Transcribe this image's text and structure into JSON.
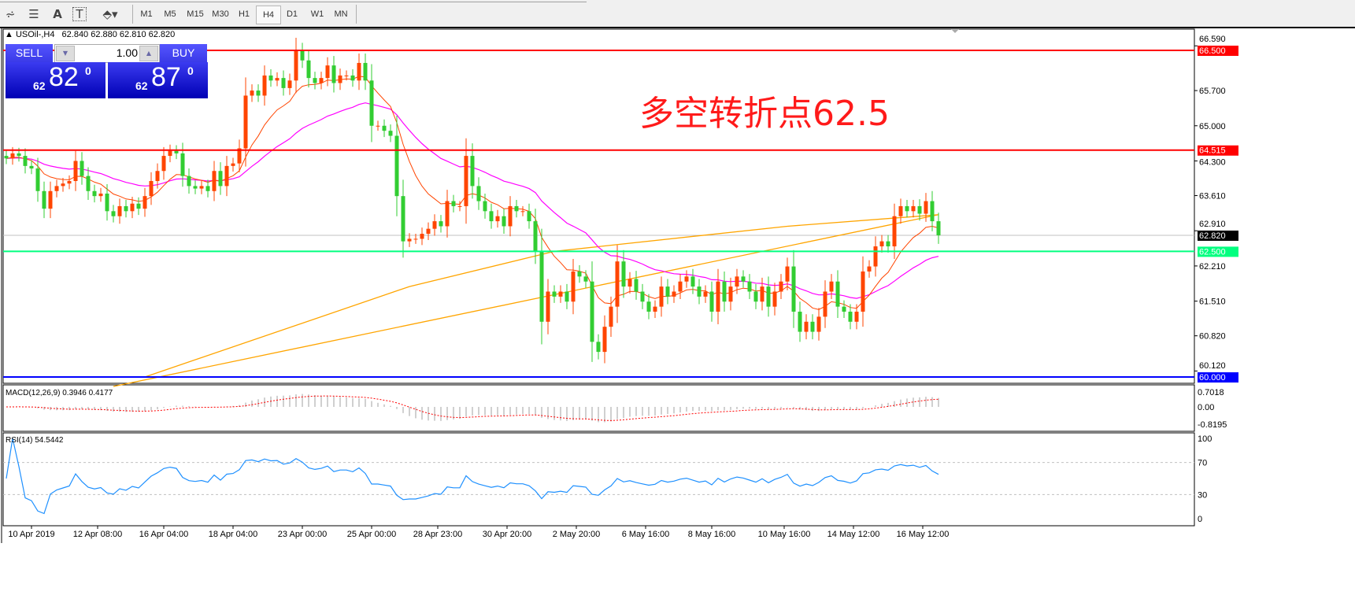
{
  "toolbar": {
    "icons": [
      "elliott-wave-icon",
      "fibonacci-icon",
      "text-icon",
      "text-label-icon",
      "arrows-icon"
    ],
    "text_icon_glyph": "A",
    "label_icon_glyph": "T",
    "timeframes": [
      "M1",
      "M5",
      "M15",
      "M30",
      "H1",
      "H4",
      "D1",
      "W1",
      "MN"
    ],
    "selected_timeframe": "H4"
  },
  "header": {
    "symbol": "USOil-,H4",
    "ohlc": "62.840 62.880 62.810 62.820"
  },
  "trade_panel": {
    "sell_label": "SELL",
    "buy_label": "BUY",
    "lot": "1.00",
    "sell_price": {
      "prefix": "62",
      "main": "82",
      "sup": "0"
    },
    "buy_price": {
      "prefix": "62",
      "main": "87",
      "sup": "0"
    }
  },
  "annotation": "多空转折点62.5",
  "macd": {
    "label": "MACD(12,26,9) 0.3946 0.4177",
    "ticks": [
      "0.7018",
      "0.00",
      "-0.8195"
    ]
  },
  "rsi": {
    "label": "RSI(14) 54.5442",
    "ticks": [
      "100",
      "70",
      "30",
      "0"
    ],
    "levels": [
      70,
      30
    ]
  },
  "colors": {
    "bull": "#ff4500",
    "bear": "#32cd32",
    "ma_fast": "#ff4500",
    "ma_mid": "#ff00ff",
    "ma_long": "#ffa500",
    "rsi": "#1e90ff",
    "macd_signal": "#ff0000"
  },
  "chart_data": {
    "type": "candlestick",
    "symbol": "USOil-",
    "timeframe": "H4",
    "ylim": [
      59.9,
      66.9
    ],
    "price_ticks": [
      "66.590",
      "65.700",
      "65.000",
      "64.300",
      "63.610",
      "62.910",
      "62.210",
      "61.510",
      "60.820",
      "60.120"
    ],
    "levels": [
      {
        "price": 66.5,
        "label": "66.500",
        "color": "#ff0000"
      },
      {
        "price": 64.515,
        "label": "64.515",
        "color": "#ff0000"
      },
      {
        "price": 62.5,
        "label": "62.500",
        "color": "#00ff7f"
      },
      {
        "price": 60.0,
        "label": "60.000",
        "color": "#0000ff"
      }
    ],
    "bid": {
      "price": 62.82,
      "label": "62.820"
    },
    "time_labels": [
      {
        "bar": 4,
        "label": "10 Apr 2019"
      },
      {
        "bar": 14.5,
        "label": "12 Apr 08:00"
      },
      {
        "bar": 25,
        "label": "16 Apr 04:00"
      },
      {
        "bar": 36,
        "label": "18 Apr 04:00"
      },
      {
        "bar": 47,
        "label": "23 Apr 00:00"
      },
      {
        "bar": 58,
        "label": "25 Apr 00:00"
      },
      {
        "bar": 68.5,
        "label": "28 Apr 23:00"
      },
      {
        "bar": 79.5,
        "label": "30 Apr 20:00"
      },
      {
        "bar": 90.5,
        "label": "2 May 20:00"
      },
      {
        "bar": 101.5,
        "label": "6 May 16:00"
      },
      {
        "bar": 112,
        "label": "8 May 16:00"
      },
      {
        "bar": 123.5,
        "label": "10 May 16:00"
      },
      {
        "bar": 134.5,
        "label": "14 May 12:00"
      },
      {
        "bar": 145.5,
        "label": "16 May 12:00"
      }
    ],
    "close": [
      64.35,
      64.45,
      64.4,
      64.2,
      64.15,
      63.7,
      63.35,
      63.7,
      63.8,
      63.85,
      63.9,
      64.3,
      64.0,
      63.7,
      63.6,
      63.65,
      63.3,
      63.2,
      63.4,
      63.3,
      63.45,
      63.35,
      63.6,
      63.9,
      64.1,
      64.4,
      64.5,
      64.45,
      64.0,
      63.8,
      63.75,
      63.8,
      63.7,
      64.1,
      63.8,
      64.2,
      64.25,
      64.55,
      65.6,
      65.7,
      65.6,
      66.0,
      65.9,
      65.95,
      65.75,
      65.9,
      66.5,
      66.3,
      65.95,
      65.85,
      65.95,
      66.2,
      65.85,
      66.0,
      66.0,
      65.9,
      66.25,
      65.9,
      65.0,
      65.0,
      64.9,
      64.8,
      63.6,
      62.7,
      62.75,
      62.75,
      62.85,
      62.95,
      63.1,
      63.0,
      63.5,
      63.4,
      63.4,
      64.4,
      63.8,
      63.5,
      63.3,
      63.1,
      63.2,
      63.0,
      63.4,
      63.3,
      63.3,
      63.1,
      62.5,
      61.1,
      61.7,
      61.6,
      61.7,
      61.5,
      62.1,
      62.0,
      61.9,
      60.7,
      60.5,
      61.0,
      61.4,
      62.3,
      61.8,
      61.95,
      61.7,
      61.5,
      61.3,
      61.4,
      61.8,
      61.6,
      61.7,
      61.9,
      62.0,
      61.8,
      61.6,
      61.7,
      61.3,
      61.9,
      61.5,
      61.8,
      62.0,
      61.9,
      61.7,
      61.5,
      61.8,
      61.4,
      61.7,
      61.9,
      62.2,
      61.3,
      60.9,
      61.1,
      60.9,
      61.2,
      61.7,
      61.9,
      61.4,
      61.3,
      61.1,
      61.3,
      62.1,
      62.2,
      62.6,
      62.7,
      62.6,
      63.2,
      63.4,
      63.3,
      63.4,
      63.25,
      63.5,
      63.1,
      62.82
    ],
    "ma_long": [
      [
        22,
        60.0
      ],
      [
        64,
        61.8
      ],
      [
        87,
        62.5
      ],
      [
        124,
        63.0
      ],
      [
        148,
        63.23
      ]
    ]
  }
}
